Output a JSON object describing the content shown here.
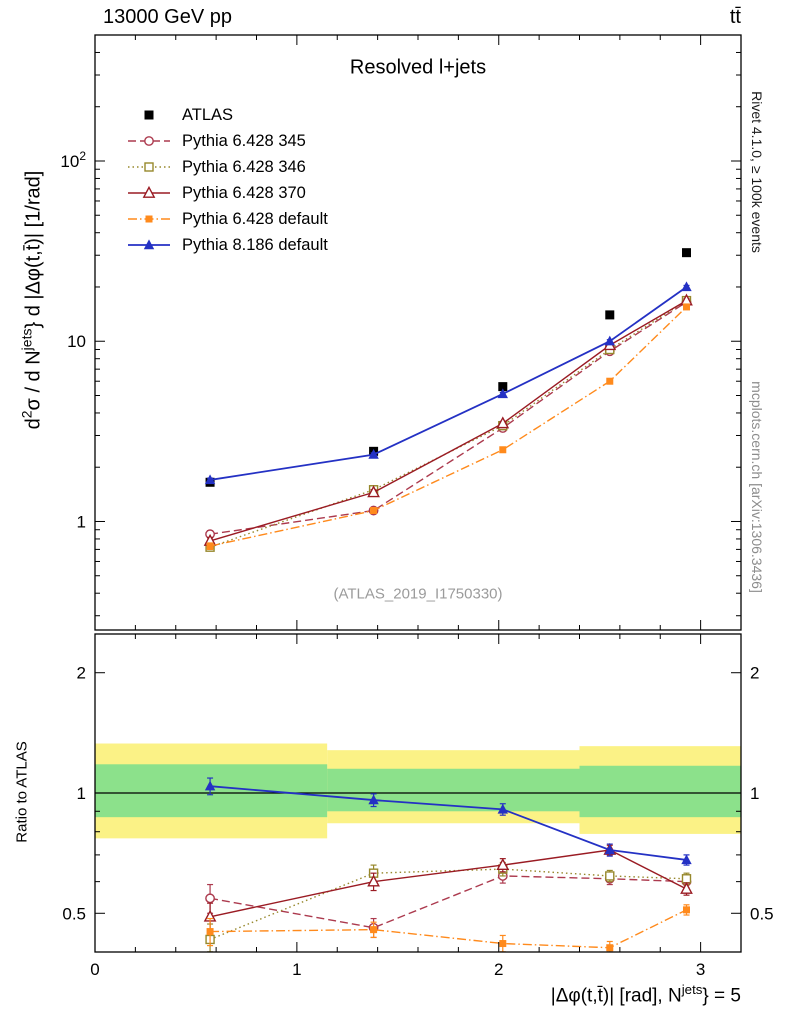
{
  "header": {
    "left": "13000 GeV pp",
    "right": "tt̄"
  },
  "side_labels": {
    "rivet": "Rivet 4.1.0, ≥ 100k events",
    "mcplots": "mcplots.cern.ch [arXiv:1306.3436]"
  },
  "main_plot": {
    "title": "Resolved l+jets",
    "watermark": "(ATLAS_2019_I1750330)",
    "ylabel_parts": [
      {
        "t": "d"
      },
      {
        "t": "2",
        "sup": true
      },
      {
        "t": "σ / d N"
      },
      {
        "t": "jets",
        "sup": true
      },
      {
        "t": "} d |Δφ(t,t̄)| [1/rad]"
      }
    ]
  },
  "ratio_plot": {
    "ylabel": "Ratio to ATLAS"
  },
  "xaxis": {
    "label_parts": [
      {
        "t": "|Δφ(t,t̄)| [rad], N"
      },
      {
        "t": "jets",
        "sup": true
      },
      {
        "t": "} = 5"
      }
    ]
  },
  "chart_data": [
    {
      "id": "main",
      "type": "line",
      "title": "Resolved l+jets",
      "xlabel": "|Δφ(t,t̄)| [rad], N^{jets} = 5",
      "ylabel": "d^2σ / d N^{jets} d |Δφ(t,t̄)| [1/rad]",
      "legend_position": "top-left",
      "grid": false,
      "ylog": true,
      "xlim": [
        0,
        3.2
      ],
      "ylim": [
        0.25,
        500
      ],
      "x": [
        0.57,
        1.38,
        2.02,
        2.55,
        2.93
      ],
      "xticks": {
        "major": [
          0,
          1,
          2,
          3
        ],
        "minor_step": 0.2
      },
      "yticks_labeled": [
        [
          1,
          "1"
        ],
        [
          10,
          "10"
        ],
        [
          100,
          "10^2"
        ]
      ],
      "series": [
        {
          "name": "ATLAS",
          "color": "#000000",
          "marker": "square-filled",
          "line": "none",
          "values": [
            1.65,
            2.45,
            5.6,
            14.0,
            31.0
          ],
          "err": [
            0.06,
            0.08,
            0.18,
            0.45,
            1.0
          ]
        },
        {
          "name": "Pythia 6.428 345",
          "color": "#ac3a4e",
          "marker": "circle-open",
          "line": "dashed",
          "values": [
            0.85,
            1.15,
            3.3,
            8.8,
            16.5
          ],
          "err": [
            0.04,
            0.04,
            0.09,
            0.2,
            0.4
          ]
        },
        {
          "name": "Pythia 6.428 346",
          "color": "#97882c",
          "marker": "square-open",
          "line": "dotted",
          "values": [
            0.72,
            1.5,
            3.4,
            9.0,
            16.8
          ],
          "err": [
            0.03,
            0.05,
            0.09,
            0.2,
            0.4
          ]
        },
        {
          "name": "Pythia 6.428 370",
          "color": "#9a1b23",
          "marker": "triangle-open",
          "line": "solid",
          "values": [
            0.78,
            1.45,
            3.5,
            9.5,
            16.8
          ],
          "err": [
            0.035,
            0.05,
            0.09,
            0.2,
            0.4
          ]
        },
        {
          "name": "Pythia 6.428 default",
          "color": "#ff8a1c",
          "marker": "square-filled-small",
          "line": "dashdot",
          "values": [
            0.73,
            1.15,
            2.5,
            6.0,
            15.5
          ],
          "err": [
            0.03,
            0.04,
            0.07,
            0.15,
            0.35
          ]
        },
        {
          "name": "Pythia 8.186 default",
          "color": "#2431c4",
          "marker": "triangle-filled",
          "line": "solid",
          "values": [
            1.7,
            2.35,
            5.1,
            10.0,
            20.0
          ],
          "err": [
            0.04,
            0.05,
            0.1,
            0.2,
            0.4
          ]
        }
      ]
    },
    {
      "id": "ratio",
      "type": "line",
      "ylabel": "Ratio to ATLAS",
      "grid": false,
      "ylog": true,
      "xlim": [
        0,
        3.2
      ],
      "ylim": [
        0.4,
        2.5
      ],
      "x": [
        0.57,
        1.38,
        2.02,
        2.55,
        2.93
      ],
      "xticks": {
        "major": [
          0,
          1,
          2,
          3
        ],
        "minor_step": 0.2,
        "labels": [
          "0",
          "1",
          "2",
          "3"
        ]
      },
      "yticks_labeled": [
        [
          0.5,
          "0.5"
        ],
        [
          1,
          "1"
        ],
        [
          2,
          "2"
        ]
      ],
      "reference_line": 1,
      "band_colors": {
        "yellow": "#fbf286",
        "green": "#8ce18b"
      },
      "bands": [
        {
          "x0": 0.0,
          "x1": 1.15,
          "yellow": [
            0.77,
            1.33
          ],
          "green": [
            0.87,
            1.18
          ]
        },
        {
          "x0": 1.15,
          "x1": 2.4,
          "yellow": [
            0.84,
            1.28
          ],
          "green": [
            0.9,
            1.15
          ]
        },
        {
          "x0": 2.4,
          "x1": 3.2,
          "yellow": [
            0.79,
            1.31
          ],
          "green": [
            0.87,
            1.17
          ]
        }
      ],
      "series": [
        {
          "name": "Pythia 6.428 345",
          "color": "#ac3a4e",
          "marker": "circle-open",
          "line": "dashed",
          "values": [
            0.545,
            0.46,
            0.62,
            0.61,
            0.6
          ],
          "err": [
            0.045,
            0.025,
            0.025,
            0.02,
            0.02
          ]
        },
        {
          "name": "Pythia 6.428 346",
          "color": "#97882c",
          "marker": "square-open",
          "line": "dotted",
          "values": [
            0.43,
            0.63,
            0.645,
            0.62,
            0.61
          ],
          "err": [
            0.04,
            0.03,
            0.025,
            0.02,
            0.02
          ]
        },
        {
          "name": "Pythia 6.428 370",
          "color": "#9a1b23",
          "marker": "triangle-open",
          "line": "solid",
          "values": [
            0.49,
            0.6,
            0.66,
            0.72,
            0.575
          ],
          "err": [
            0.04,
            0.03,
            0.025,
            0.02,
            0.02
          ]
        },
        {
          "name": "Pythia 6.428 default",
          "color": "#ff8a1c",
          "marker": "square-filled-small",
          "line": "dashdot",
          "values": [
            0.45,
            0.455,
            0.42,
            0.41,
            0.51
          ],
          "err": [
            0.035,
            0.02,
            0.02,
            0.015,
            0.015
          ]
        },
        {
          "name": "Pythia 8.186 default",
          "color": "#2431c4",
          "marker": "triangle-filled",
          "line": "solid",
          "values": [
            1.04,
            0.96,
            0.91,
            0.72,
            0.68
          ],
          "err": [
            0.05,
            0.035,
            0.03,
            0.025,
            0.02
          ]
        }
      ]
    }
  ]
}
